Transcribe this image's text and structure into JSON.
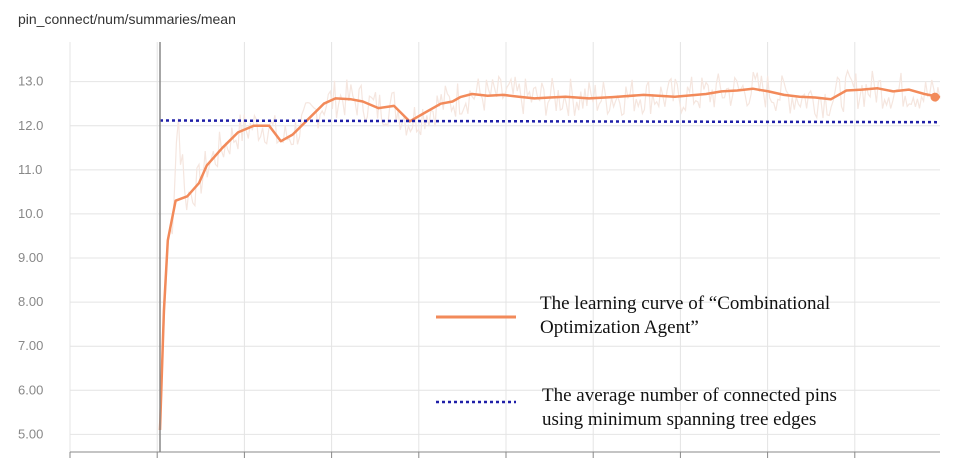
{
  "chart_data": {
    "type": "line",
    "title": "pin_connect/num/summaries/mean",
    "xlabel": "",
    "ylabel": "",
    "x_range": [
      0,
      1
    ],
    "ylim": [
      4.6,
      13.9
    ],
    "y_ticks": [
      {
        "value": 13.0,
        "label": "13.0"
      },
      {
        "value": 12.0,
        "label": "12.0"
      },
      {
        "value": 11.0,
        "label": "11.0"
      },
      {
        "value": 10.0,
        "label": "10.0"
      },
      {
        "value": 9.0,
        "label": "9.00"
      },
      {
        "value": 8.0,
        "label": "8.00"
      },
      {
        "value": 7.0,
        "label": "7.00"
      },
      {
        "value": 6.0,
        "label": "6.00"
      },
      {
        "value": 5.0,
        "label": "5.00"
      }
    ],
    "x_tick_count": 11,
    "grid": true,
    "colors": {
      "smoothed": "#f28a5a",
      "raw": "#f5e6df",
      "baseline": "#1f1fa8",
      "axis": "#888888",
      "grid": "#e4e4e4"
    },
    "series": [
      {
        "name": "The learning curve of “Combinational Optimization Agent”",
        "style": "solid",
        "x": [
          0.0,
          0.005,
          0.01,
          0.02,
          0.035,
          0.05,
          0.06,
          0.08,
          0.1,
          0.12,
          0.14,
          0.155,
          0.17,
          0.19,
          0.21,
          0.225,
          0.245,
          0.26,
          0.28,
          0.3,
          0.32,
          0.34,
          0.36,
          0.375,
          0.385,
          0.4,
          0.42,
          0.44,
          0.46,
          0.48,
          0.5,
          0.52,
          0.55,
          0.58,
          0.62,
          0.66,
          0.7,
          0.72,
          0.74,
          0.76,
          0.78,
          0.8,
          0.82,
          0.84,
          0.86,
          0.88,
          0.9,
          0.92,
          0.94,
          0.96,
          0.98,
          1.0
        ],
        "values": [
          5.1,
          7.8,
          9.4,
          10.3,
          10.4,
          10.7,
          11.1,
          11.5,
          11.85,
          12.0,
          12.0,
          11.65,
          11.8,
          12.15,
          12.5,
          12.62,
          12.6,
          12.55,
          12.4,
          12.45,
          12.1,
          12.3,
          12.5,
          12.55,
          12.65,
          12.72,
          12.68,
          12.7,
          12.66,
          12.62,
          12.64,
          12.66,
          12.62,
          12.65,
          12.7,
          12.66,
          12.72,
          12.78,
          12.8,
          12.84,
          12.78,
          12.7,
          12.66,
          12.64,
          12.6,
          12.8,
          12.82,
          12.85,
          12.78,
          12.82,
          12.72,
          12.65
        ]
      },
      {
        "name": "The average number of connected pins using minimum spanning tree edges",
        "style": "dotted",
        "x": [
          0.0,
          1.0
        ],
        "values": [
          12.12,
          12.08
        ]
      }
    ],
    "legend_position": "bottom-right"
  }
}
